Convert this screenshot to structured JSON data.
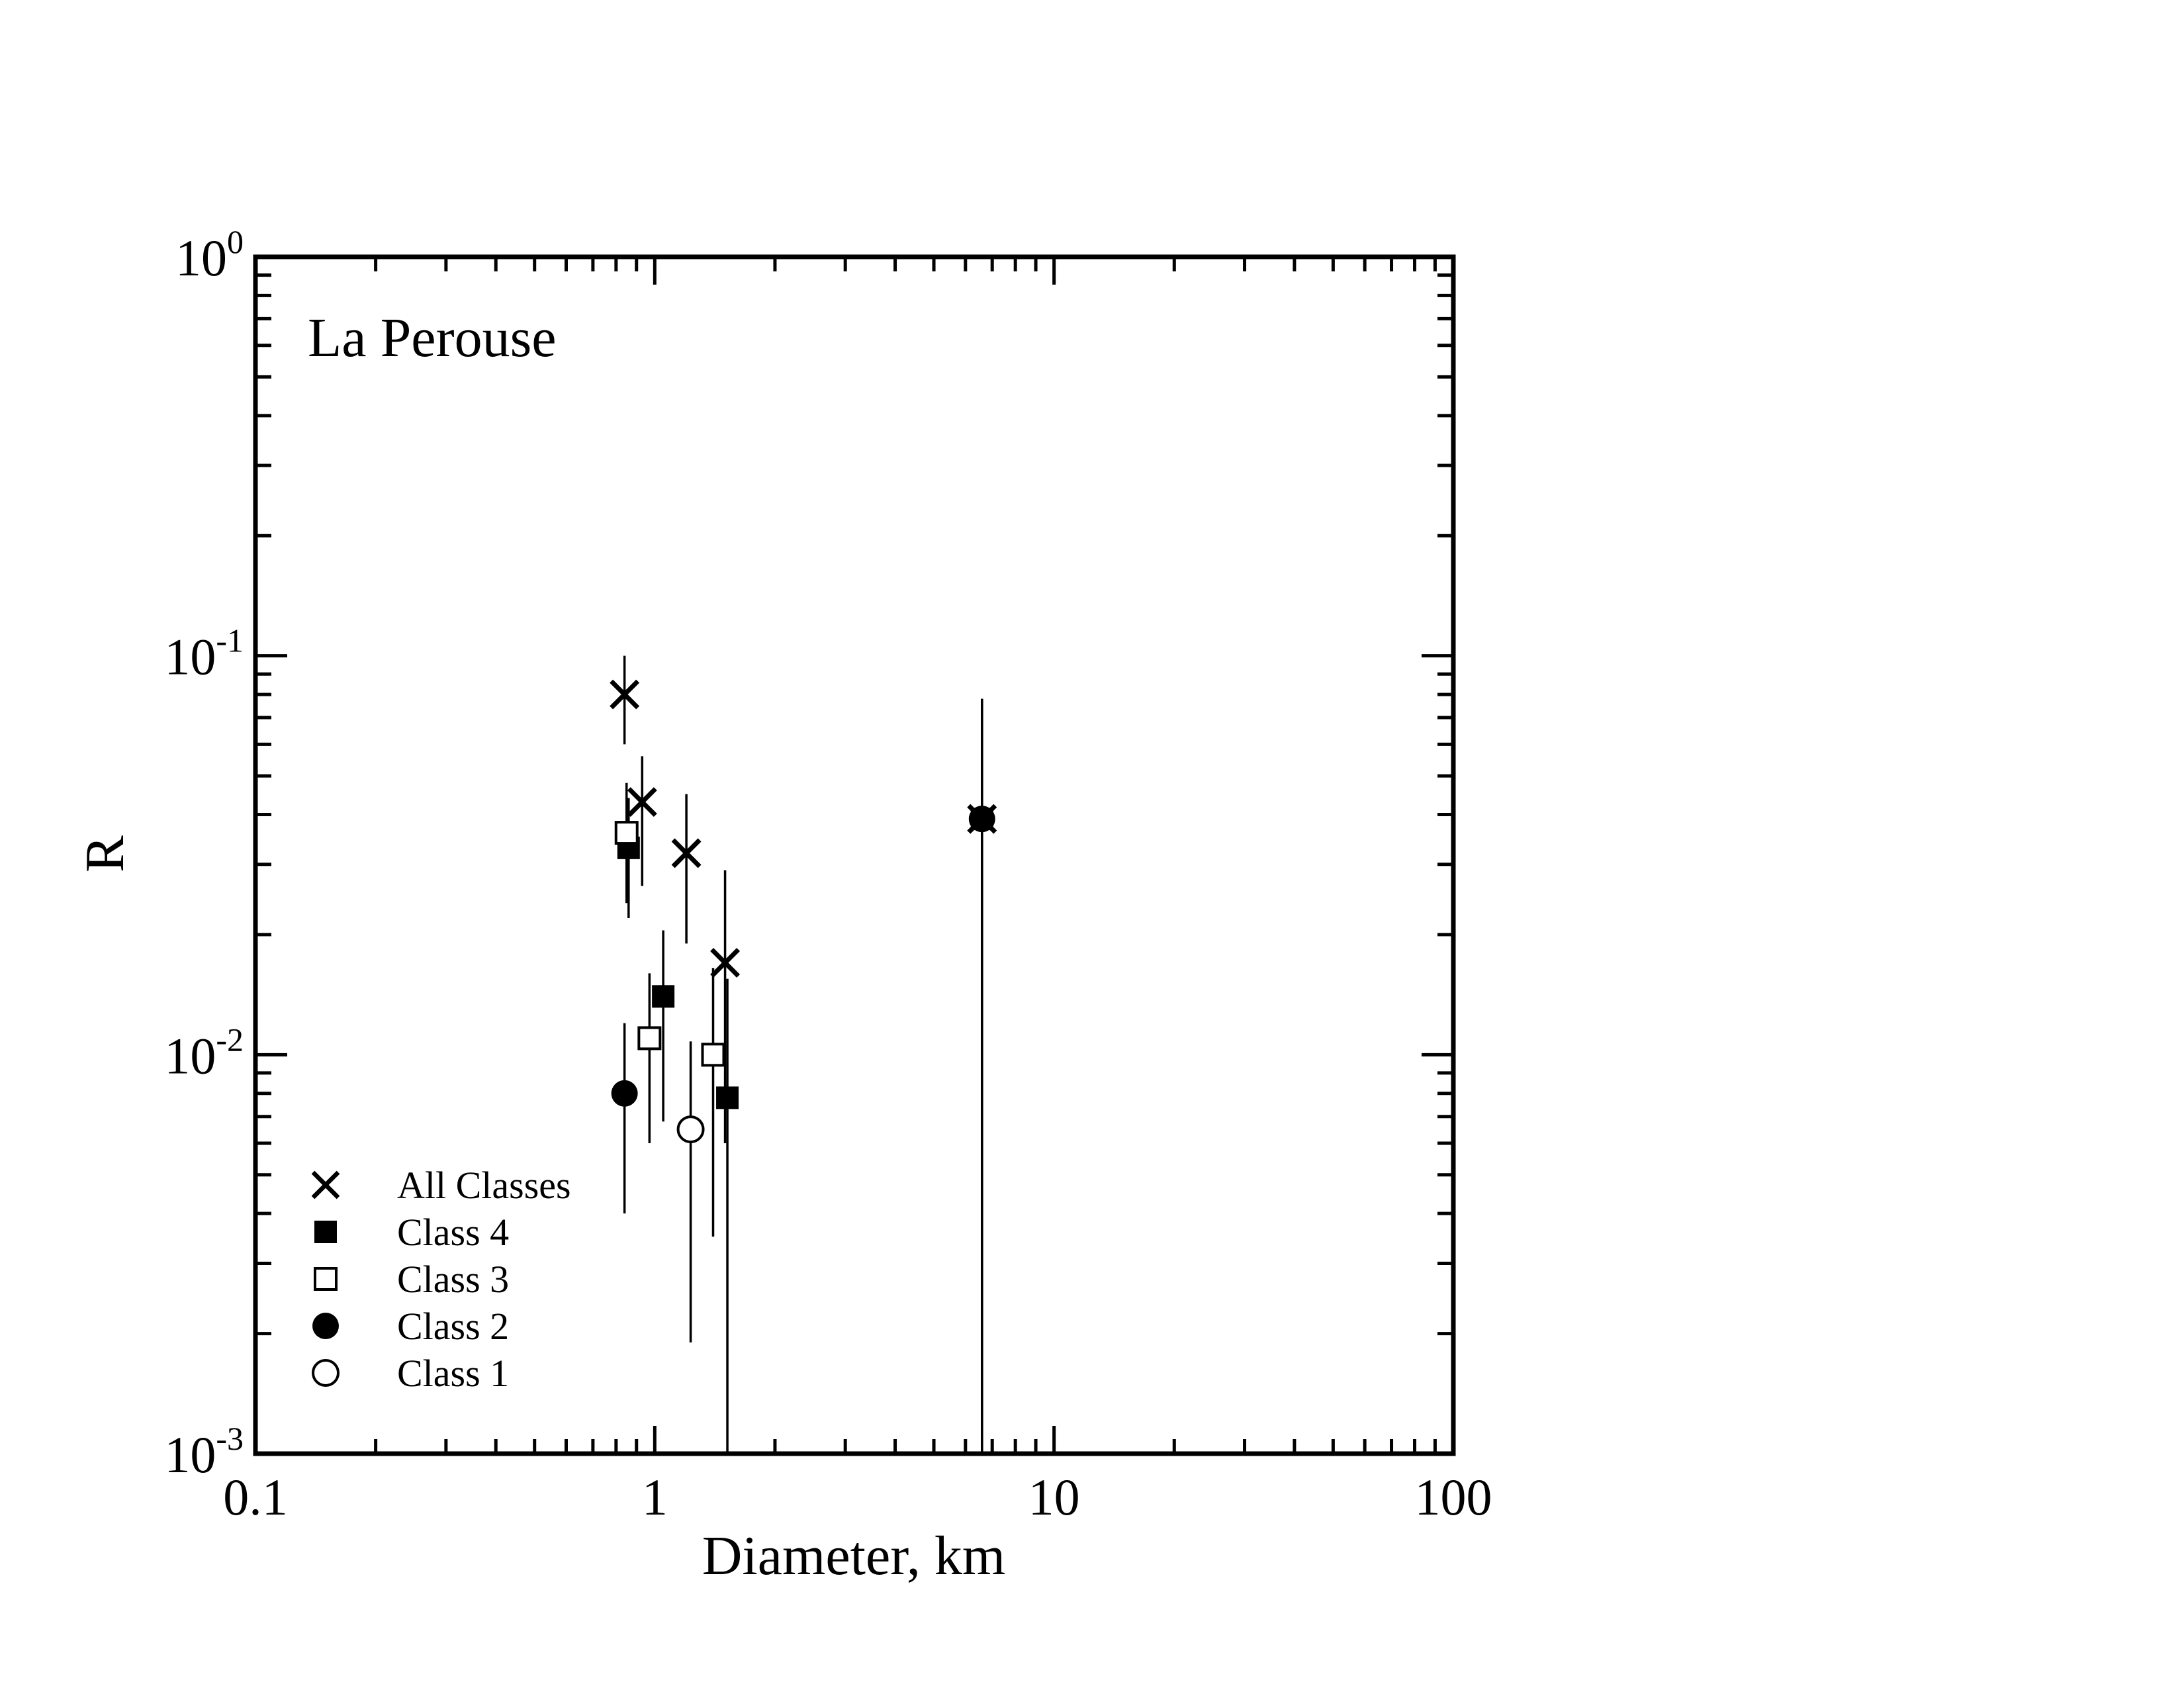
{
  "chart_data": {
    "type": "scatter",
    "annotation": "La Perouse",
    "xlabel": "Diameter, km",
    "ylabel": "R",
    "x_scale": "log",
    "y_scale": "log",
    "xlim": [
      0.1,
      100
    ],
    "ylim": [
      0.001,
      1
    ],
    "x_tick_labels": [
      "0.1",
      "1",
      "10",
      "100"
    ],
    "y_tick_labels": [
      {
        "base": "10",
        "exp": "0"
      },
      {
        "base": "10",
        "exp": "-1"
      },
      {
        "base": "10",
        "exp": "-2"
      },
      {
        "base": "10",
        "exp": "-3"
      }
    ],
    "grid": false,
    "legend_position": "bottom-left",
    "series": [
      {
        "name": "All Classes",
        "marker": "x",
        "points": [
          {
            "x": 0.84,
            "y": 0.08,
            "y_low": 0.06,
            "y_high": 0.1
          },
          {
            "x": 0.93,
            "y": 0.043,
            "y_low": 0.0265,
            "y_high": 0.056
          },
          {
            "x": 1.2,
            "y": 0.032,
            "y_low": 0.019,
            "y_high": 0.045
          },
          {
            "x": 1.5,
            "y": 0.017,
            "y_low": 0.006,
            "y_high": 0.029
          },
          {
            "x": 6.6,
            "y": 0.039,
            "y_low": 0.001,
            "y_high": 0.078
          }
        ]
      },
      {
        "name": "Class 4",
        "marker": "filled-square",
        "points": [
          {
            "x": 0.86,
            "y": 0.033,
            "y_low": 0.022,
            "y_high": 0.044
          },
          {
            "x": 1.05,
            "y": 0.014,
            "y_low": 0.0068,
            "y_high": 0.0205
          },
          {
            "x": 1.52,
            "y": 0.0078,
            "y_low": 0.001,
            "y_high": 0.0155
          },
          {
            "x": 6.6,
            "y": 0.039,
            "y_low": 0.001,
            "y_high": 0.078
          }
        ]
      },
      {
        "name": "Class 3",
        "marker": "open-square",
        "points": [
          {
            "x": 0.85,
            "y": 0.036,
            "y_low": 0.024,
            "y_high": 0.048
          },
          {
            "x": 0.97,
            "y": 0.011,
            "y_low": 0.006,
            "y_high": 0.016
          },
          {
            "x": 1.4,
            "y": 0.01,
            "y_low": 0.0035,
            "y_high": 0.0165
          }
        ]
      },
      {
        "name": "Class 2",
        "marker": "filled-circle",
        "points": [
          {
            "x": 0.84,
            "y": 0.008,
            "y_low": 0.004,
            "y_high": 0.012
          },
          {
            "x": 6.6,
            "y": 0.039,
            "y_low": 0.001,
            "y_high": 0.078
          }
        ]
      },
      {
        "name": "Class 1",
        "marker": "open-circle",
        "points": [
          {
            "x": 1.23,
            "y": 0.0065,
            "y_low": 0.0019,
            "y_high": 0.0108
          }
        ]
      }
    ]
  }
}
